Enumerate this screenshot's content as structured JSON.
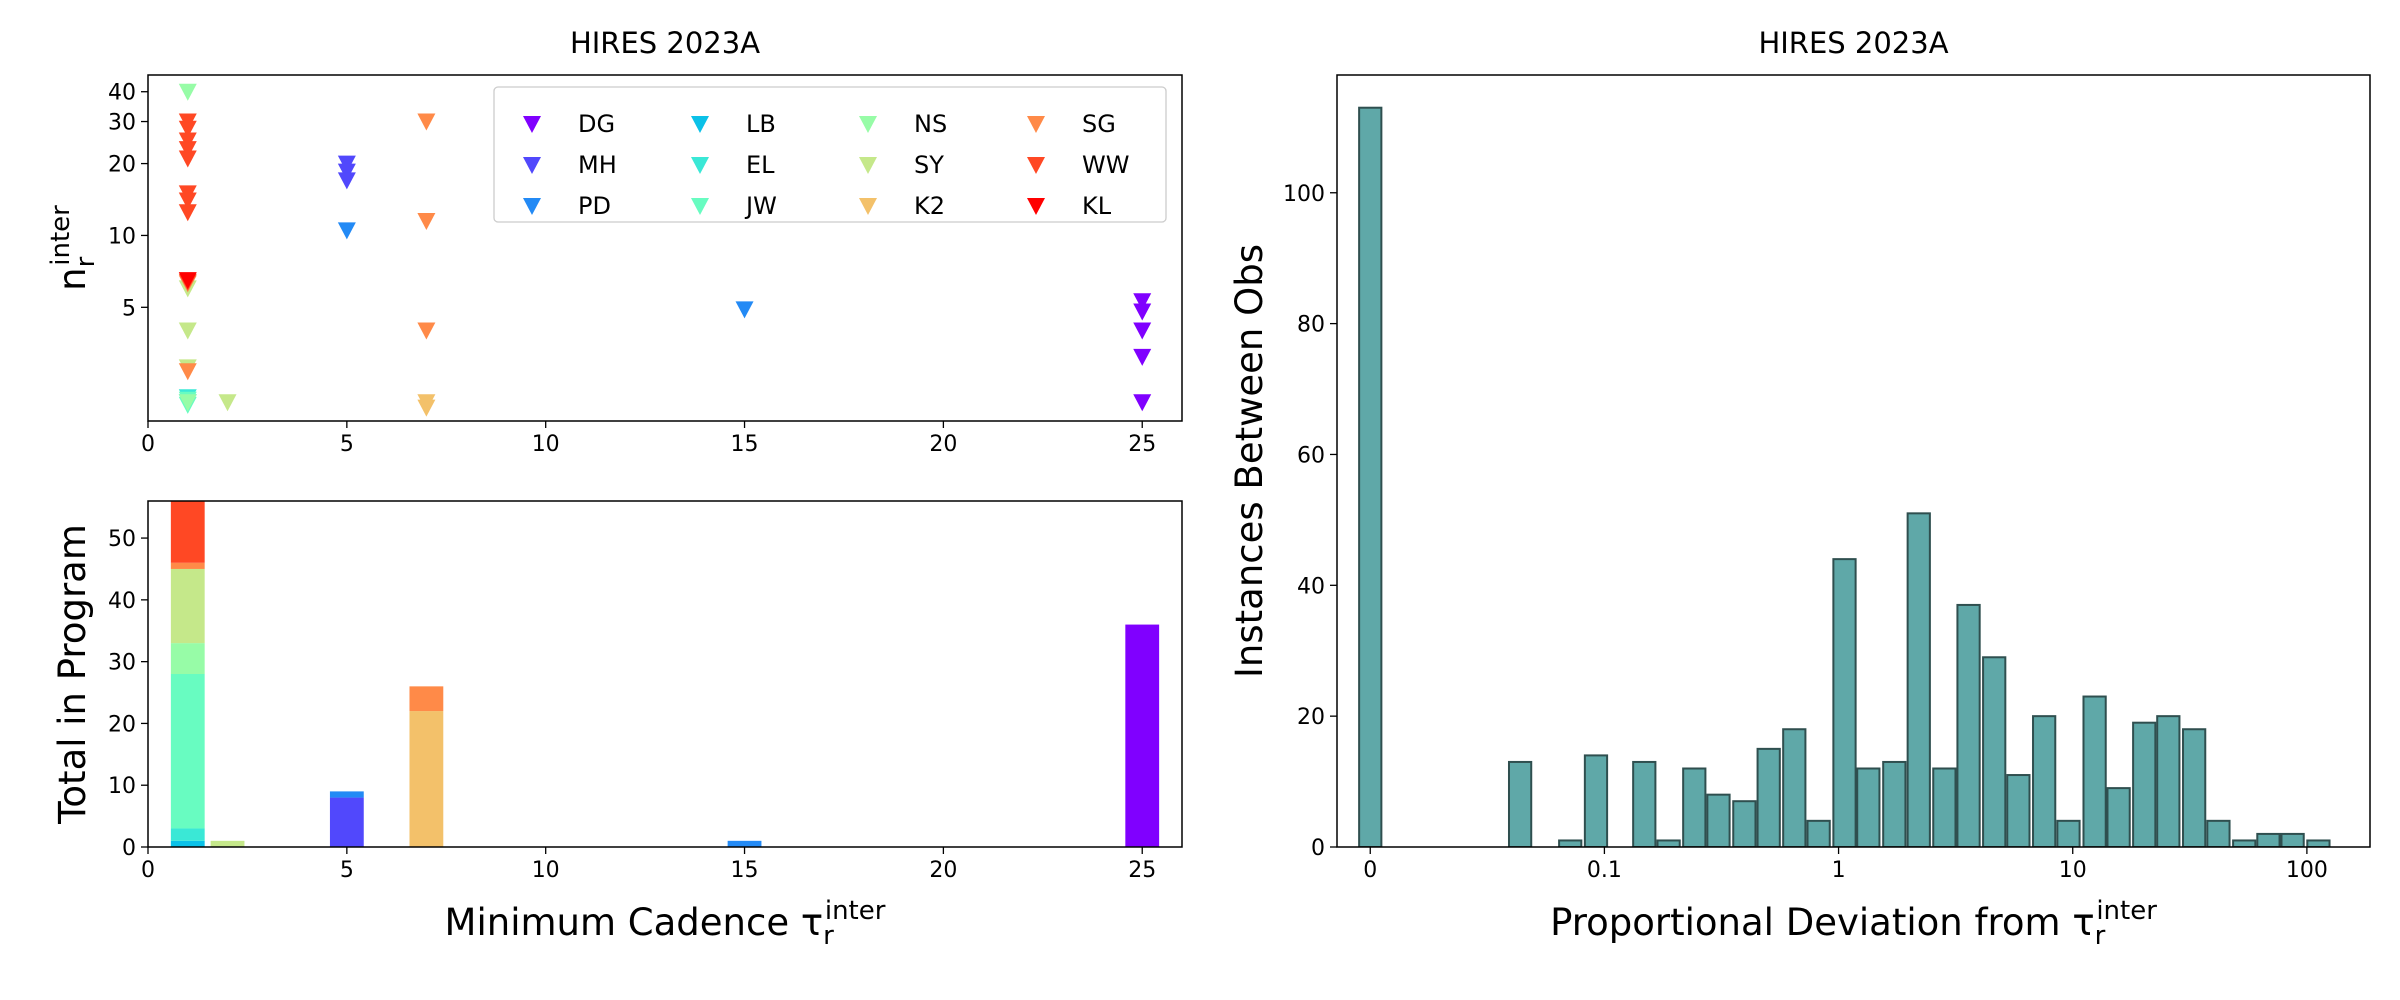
{
  "chart_data": [
    {
      "type": "scatter",
      "title": "HIRES 2023A",
      "ylabel": {
        "text": "n",
        "sub": "r",
        "sup": "inter"
      },
      "xlim": [
        0,
        26
      ],
      "xticks": [
        0,
        5,
        10,
        15,
        20,
        25
      ],
      "ylim": [
        1.67,
        47
      ],
      "yscale": "log",
      "yticks": [
        5,
        10,
        20,
        30,
        40
      ],
      "legend": "upper right",
      "series": [
        {
          "name": "DG",
          "color": "#8000ff",
          "x": [
            25,
            25,
            25,
            25,
            25
          ],
          "values": [
            5.3,
            4.8,
            4,
            3.1,
            2
          ]
        },
        {
          "name": "MH",
          "color": "#5148fc",
          "x": [
            5,
            5,
            5
          ],
          "values": [
            20,
            18.5,
            17
          ]
        },
        {
          "name": "PD",
          "color": "#238af5",
          "x": [
            5,
            15
          ],
          "values": [
            10.5,
            4.9
          ]
        },
        {
          "name": "LB",
          "color": "#0bc1e8",
          "x": [
            1
          ],
          "values": [
            2
          ]
        },
        {
          "name": "EL",
          "color": "#3ae8d6",
          "x": [
            1
          ],
          "values": [
            2.1
          ]
        },
        {
          "name": "JW",
          "color": "#68fcc1",
          "x": [
            1,
            1,
            1
          ],
          "values": [
            2,
            2.05,
            1.95
          ]
        },
        {
          "name": "NS",
          "color": "#97fca7",
          "x": [
            1,
            1
          ],
          "values": [
            40,
            2
          ]
        },
        {
          "name": "SY",
          "color": "#c5e88a",
          "x": [
            1,
            1,
            1,
            2
          ],
          "values": [
            6,
            4,
            2.8,
            2
          ]
        },
        {
          "name": "K2",
          "color": "#f3c16a",
          "x": [
            7,
            7
          ],
          "values": [
            2,
            1.9
          ]
        },
        {
          "name": "SG",
          "color": "#ff8a48",
          "x": [
            7,
            7,
            7,
            1,
            1
          ],
          "values": [
            30,
            11.5,
            4,
            2.7,
            6.3
          ]
        },
        {
          "name": "WW",
          "color": "#ff4824",
          "x": [
            1,
            1,
            1,
            1,
            1,
            1,
            1,
            1,
            1
          ],
          "values": [
            30,
            28,
            25,
            23,
            21,
            15,
            14,
            12.5,
            6.4
          ]
        },
        {
          "name": "KL",
          "color": "#ff0000",
          "x": [
            1
          ],
          "values": [
            6.5
          ]
        }
      ]
    },
    {
      "type": "bar",
      "stacked": true,
      "xlabel": {
        "text": "Minimum Cadence τ",
        "sub": "r",
        "sup": "inter"
      },
      "ylabel": "Total in Program",
      "x": [
        1,
        2,
        5,
        7,
        15,
        25
      ],
      "xlim": [
        0,
        26
      ],
      "xticks": [
        0,
        5,
        10,
        15,
        20,
        25
      ],
      "ylim": [
        0,
        56
      ],
      "yticks": [
        0,
        10,
        20,
        30,
        40,
        50
      ],
      "series": [
        {
          "color": "#8000ff",
          "values": [
            0,
            0,
            0,
            0,
            0,
            36
          ]
        },
        {
          "color": "#5148fc",
          "values": [
            0,
            0,
            8,
            0,
            0,
            0
          ]
        },
        {
          "color": "#238af5",
          "values": [
            0,
            0,
            1,
            0,
            1,
            0
          ]
        },
        {
          "color": "#0bc1e8",
          "values": [
            1,
            0,
            0,
            0,
            0,
            0
          ]
        },
        {
          "color": "#3ae8d6",
          "values": [
            2,
            0,
            0,
            0,
            0,
            0
          ]
        },
        {
          "color": "#68fcc1",
          "values": [
            25,
            0,
            0,
            0,
            0,
            0
          ]
        },
        {
          "color": "#97fca7",
          "values": [
            5,
            0,
            0,
            0,
            0,
            0
          ]
        },
        {
          "color": "#c5e88a",
          "values": [
            12,
            1,
            0,
            0,
            0,
            0
          ]
        },
        {
          "color": "#f3c16a",
          "values": [
            0,
            0,
            0,
            22,
            0,
            0
          ]
        },
        {
          "color": "#ff8a48",
          "values": [
            1,
            0,
            0,
            4,
            0,
            0
          ]
        },
        {
          "color": "#ff4824",
          "values": [
            10,
            0,
            0,
            0,
            0,
            0
          ]
        },
        {
          "color": "#ff0000",
          "values": [
            0,
            0,
            0,
            0,
            0,
            0
          ]
        }
      ]
    },
    {
      "type": "histogram",
      "title": "HIRES 2023A",
      "xlabel": {
        "text": "Proportional Deviation from τ",
        "sub": "r",
        "sup": "inter"
      },
      "ylabel": "Instances Between Obs",
      "xscale": "symlog",
      "linthresh": 0.1,
      "xlim": [
        -0.0142,
        186
      ],
      "xticks": [
        0,
        0.1,
        1,
        10,
        100
      ],
      "ylim": [
        0,
        118
      ],
      "yticks": [
        0,
        20,
        40,
        60,
        80,
        100
      ],
      "color": "#5fa8a8",
      "edgecolor": "#2f4f4f",
      "x": [
        0,
        0.064,
        0.0854,
        0.0964,
        0.148,
        0.188,
        0.242,
        0.307,
        0.396,
        0.503,
        0.647,
        0.822,
        1.06,
        1.34,
        1.73,
        2.2,
        2.83,
        3.59,
        4.62,
        5.86,
        7.55,
        9.59,
        12.4,
        15.7,
        20.2,
        25.6,
        33,
        41.9,
        54,
        68.5,
        86.9,
        112
      ],
      "values": [
        113,
        13,
        1,
        14,
        13,
        1,
        12,
        8,
        7,
        15,
        18,
        4,
        44,
        12,
        13,
        51,
        12,
        37,
        29,
        11,
        20,
        4,
        23,
        9,
        19,
        20,
        18,
        4,
        1,
        2,
        2,
        1
      ]
    }
  ]
}
